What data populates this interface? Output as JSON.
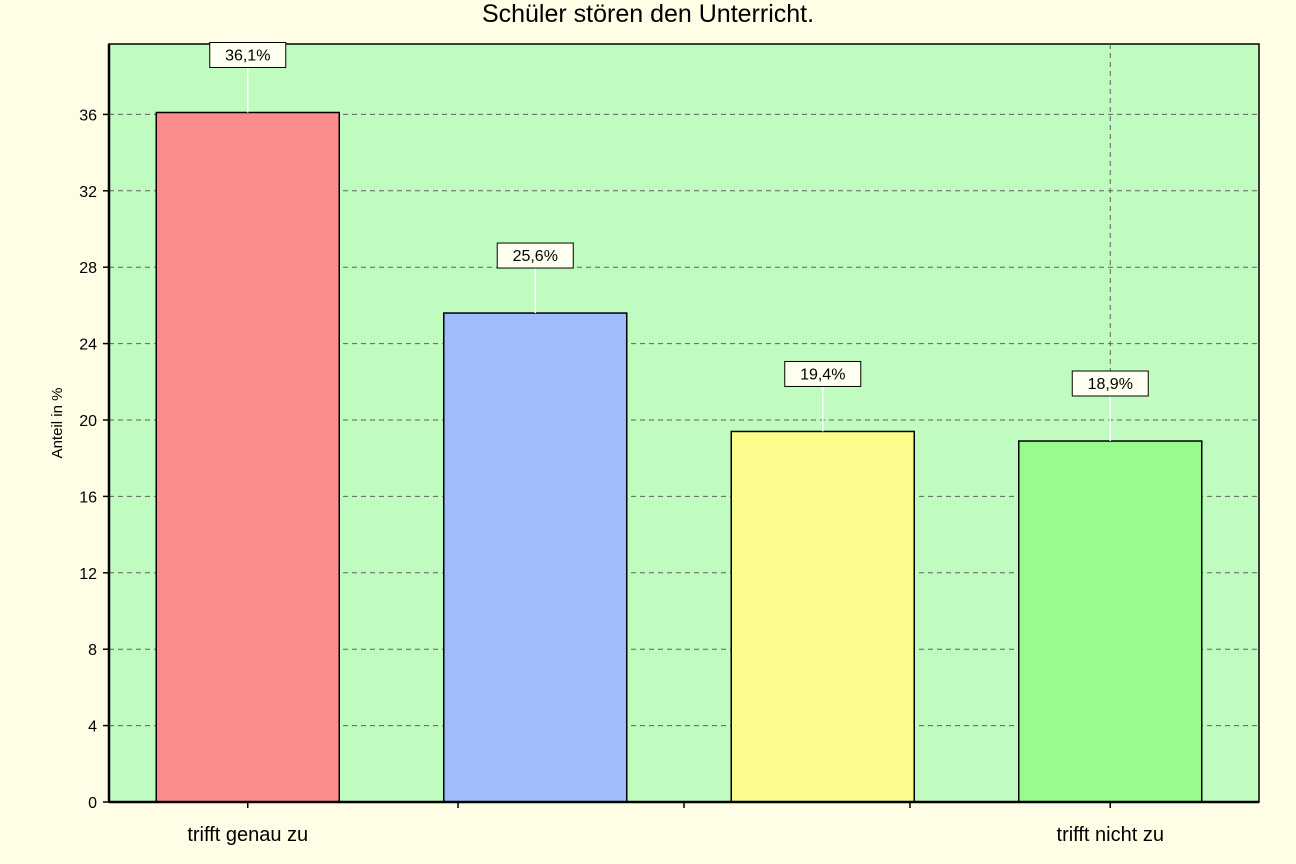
{
  "chart_data": {
    "type": "bar",
    "title": "Schüler stören den Unterricht.",
    "ylabel": "Anteil in %",
    "xlabel": "",
    "categories": [
      "trifft genau zu",
      "",
      "",
      "trifft nicht zu"
    ],
    "values": [
      36.1,
      25.6,
      19.4,
      18.9
    ],
    "data_labels": [
      "36,1%",
      "25,6%",
      "19,4%",
      "18,9%"
    ],
    "ylim": [
      0,
      40
    ],
    "yticks": [
      0,
      4,
      8,
      12,
      16,
      20,
      24,
      28,
      32,
      36
    ],
    "grid": true,
    "legend": "none",
    "colors": {
      "plot_background": "#c0fcc0",
      "page_background": "#fffde6",
      "bars": [
        "#fc8c8c",
        "#a0bcfc",
        "#fcfc8c",
        "#98fc8c"
      ],
      "grid": "#606060"
    }
  }
}
